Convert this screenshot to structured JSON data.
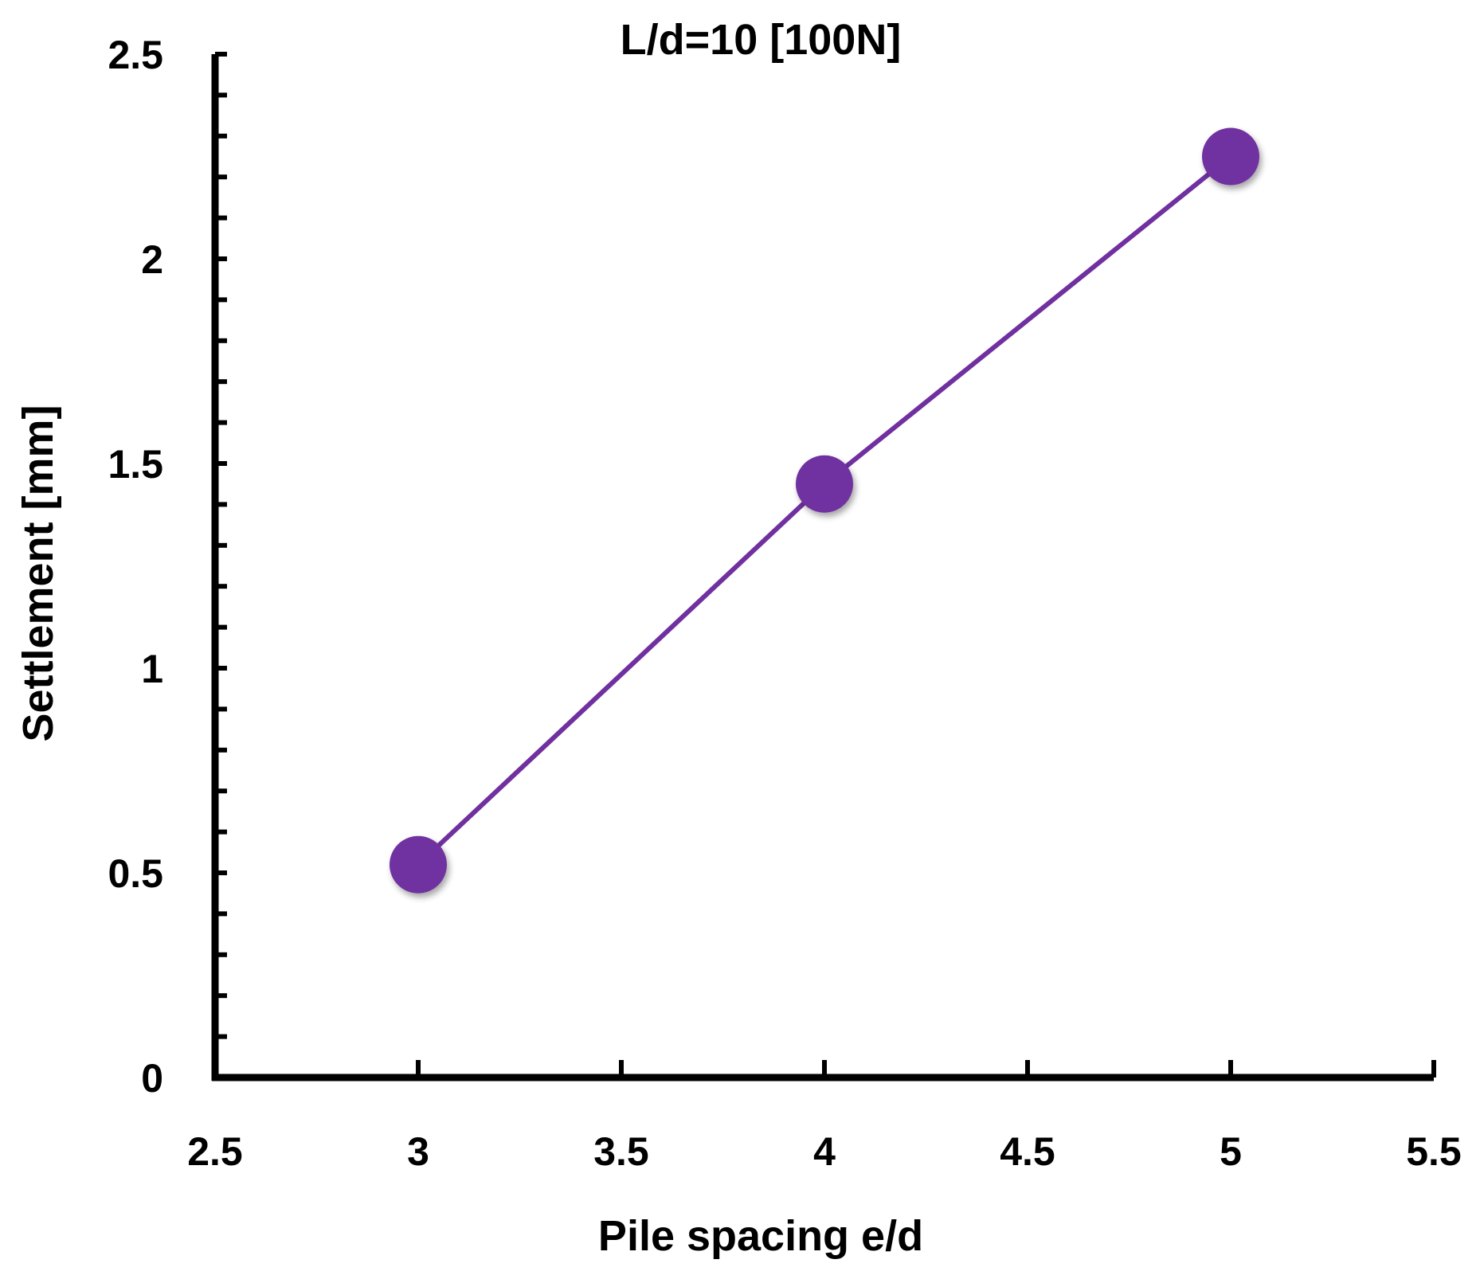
{
  "chart_data": {
    "type": "line",
    "title": "L/d=10  [100N]",
    "xlabel": "Pile spacing e/d",
    "ylabel": "Settlement [mm]",
    "xlim": [
      2.5,
      5.5
    ],
    "ylim": [
      0,
      2.5
    ],
    "x_ticks": [
      "2.5",
      "3",
      "3.5",
      "4",
      "4.5",
      "5",
      "5.5"
    ],
    "y_ticks": [
      "0",
      "0.5",
      "1",
      "1.5",
      "2",
      "2.5"
    ],
    "grid": false,
    "legend": "none",
    "series": [
      {
        "color": "#7030A0",
        "marker": "circle",
        "x": [
          3,
          4,
          5
        ],
        "y": [
          0.52,
          1.45,
          2.25
        ]
      }
    ]
  }
}
